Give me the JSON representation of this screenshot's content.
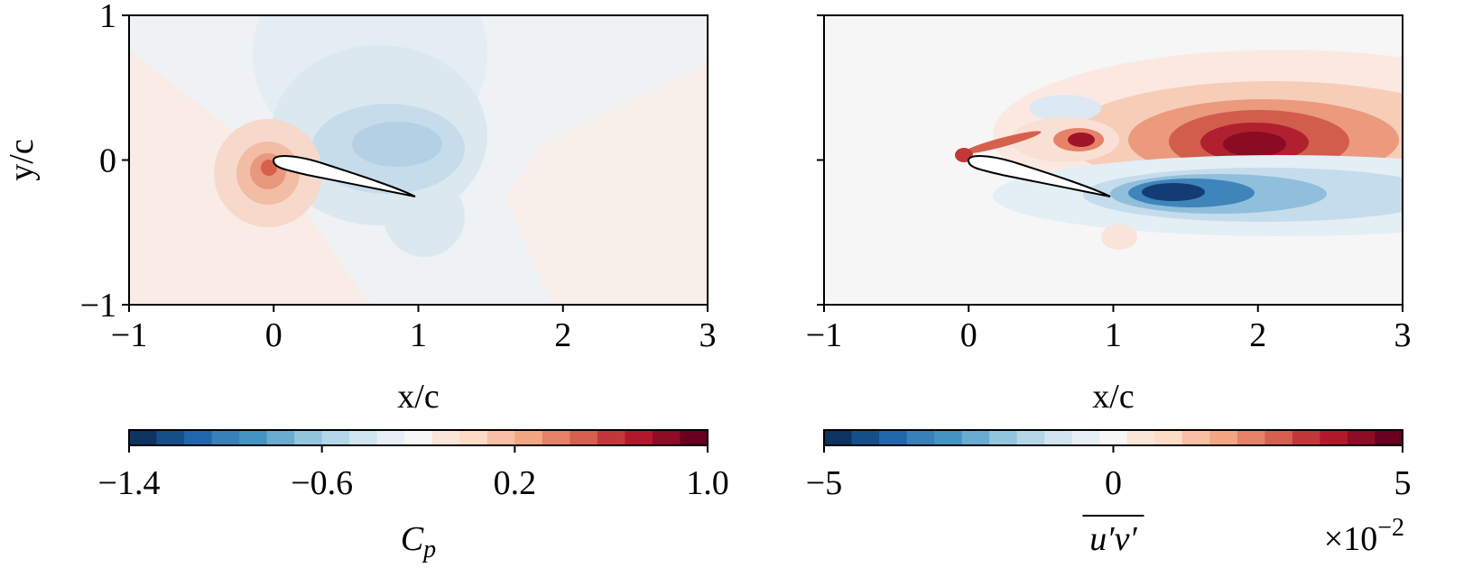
{
  "chart_data": [
    {
      "type": "contour",
      "xlabel": "x/c",
      "ylabel": "y/c",
      "xlim": [
        -1,
        3
      ],
      "ylim": [
        -1,
        1
      ],
      "xticks": [
        {
          "value": -1,
          "label": "−1"
        },
        0,
        1,
        2,
        3
      ],
      "yticks": [
        {
          "value": -1,
          "label": "−1"
        },
        0,
        1
      ],
      "colorbar": {
        "lim": [
          -1.4,
          1.0
        ],
        "ticks": [
          {
            "value": -1.4,
            "label": "−1.4"
          },
          {
            "value": -0.6,
            "label": "−0.6"
          },
          0.2,
          {
            "value": 1.0,
            "label": "1.0"
          }
        ],
        "label": "C",
        "label_sub": "p",
        "colors": [
          "#0d3461",
          "#154f8a",
          "#2166ac",
          "#3780b9",
          "#4393c3",
          "#6aabd1",
          "#92c5de",
          "#b3d6e8",
          "#d1e5f0",
          "#e6eff5",
          "#f7f7f7",
          "#fbe5d8",
          "#fddbc7",
          "#f8bfa4",
          "#f4a582",
          "#e58267",
          "#d6604d",
          "#c2383a",
          "#b2182b",
          "#8e0c25",
          "#67001f"
        ]
      }
    },
    {
      "type": "contour",
      "xlabel": "x/c",
      "xlim": [
        -1,
        3
      ],
      "ylim": [
        -1,
        1
      ],
      "xticks": [
        {
          "value": -1,
          "label": "−1"
        },
        0,
        1,
        2,
        3
      ],
      "yticks": [
        -1,
        0,
        1
      ],
      "colorbar": {
        "lim": [
          -5,
          5
        ],
        "ticks": [
          {
            "value": -5,
            "label": "−5"
          },
          0,
          5
        ],
        "label": "u′v′",
        "multiplier": "×10",
        "multiplier_exp": "−2",
        "colors": [
          "#0d3461",
          "#154f8a",
          "#2166ac",
          "#3780b9",
          "#4393c3",
          "#6aabd1",
          "#92c5de",
          "#b3d6e8",
          "#d1e5f0",
          "#e6eff5",
          "#f7f7f7",
          "#fbe5d8",
          "#fddbc7",
          "#f8bfa4",
          "#f4a582",
          "#e58267",
          "#d6604d",
          "#c2383a",
          "#b2182b",
          "#8e0c25",
          "#67001f"
        ]
      }
    }
  ]
}
